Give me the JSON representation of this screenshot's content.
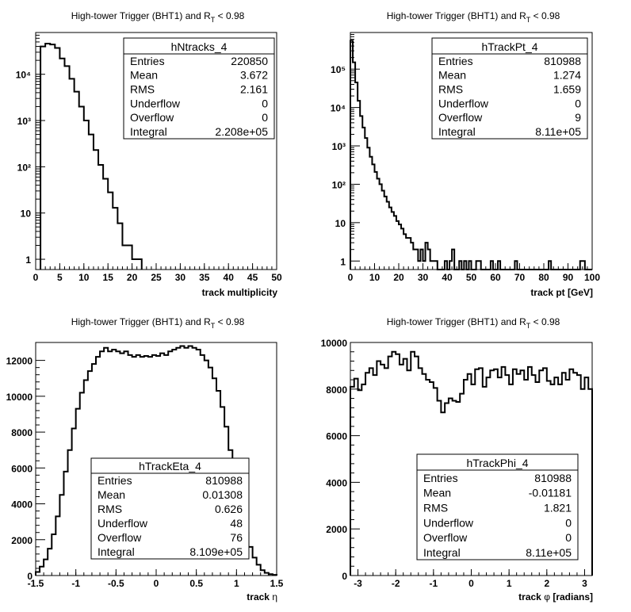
{
  "chart_data": [
    {
      "type": "histogram",
      "title": "High-tower Trigger (BHT1) and R",
      "title_sub": "T",
      "title_tail": "< 0.98",
      "xlabel": "track multiplicity",
      "xlabel_symbol": "",
      "xlabel_tail": "",
      "xlim": [
        0,
        50
      ],
      "ylim": [
        0.6,
        80000
      ],
      "yscale": "log",
      "xticks": [
        0,
        5,
        10,
        15,
        20,
        25,
        30,
        35,
        40,
        45,
        50
      ],
      "yticks": [
        "1",
        "10",
        "10²",
        "10³",
        "10⁴"
      ],
      "bin_width": 1,
      "bin_low_edges": [
        1,
        2,
        3,
        4,
        5,
        6,
        7,
        8,
        9,
        10,
        11,
        12,
        13,
        14,
        15,
        16,
        17,
        18,
        19,
        20,
        21
      ],
      "values": [
        40000,
        46000,
        44000,
        37000,
        22000,
        15000,
        8000,
        4200,
        2000,
        1000,
        500,
        230,
        110,
        55,
        28,
        13,
        6,
        2,
        2,
        1,
        1
      ],
      "stats": {
        "name": "hNtracks_4",
        "rows": [
          {
            "label": "Entries",
            "value": "220850"
          },
          {
            "label": "Mean",
            "value": "3.672"
          },
          {
            "label": "RMS",
            "value": "2.161"
          },
          {
            "label": "Underflow",
            "value": "0"
          },
          {
            "label": "Overflow",
            "value": "0"
          },
          {
            "label": "Integral",
            "value": "2.208e+05"
          }
        ]
      }
    },
    {
      "type": "histogram",
      "title": "High-tower Trigger (BHT1) and R",
      "title_sub": "T",
      "title_tail": "< 0.98",
      "xlabel": "track pt [GeV]",
      "xlabel_symbol": "",
      "xlabel_tail": "",
      "xlim": [
        0,
        100
      ],
      "ylim": [
        0.6,
        900000
      ],
      "yscale": "log",
      "xticks": [
        0,
        10,
        20,
        30,
        40,
        50,
        60,
        70,
        80,
        90,
        100
      ],
      "yticks": [
        "1",
        "10",
        "10²",
        "10³",
        "10⁴",
        "10⁵"
      ],
      "bin_width": 1,
      "bin_low_edges": [
        0,
        1,
        2,
        3,
        4,
        5,
        6,
        7,
        8,
        9,
        10,
        11,
        12,
        13,
        14,
        15,
        16,
        17,
        18,
        19,
        20,
        21,
        22,
        23,
        24,
        25,
        26,
        27,
        28,
        29,
        30,
        31,
        32,
        33,
        34,
        35,
        36,
        37,
        38,
        39,
        40,
        41,
        42,
        43,
        44,
        45,
        46,
        47,
        48,
        49,
        50,
        51,
        52,
        53,
        54,
        55,
        56,
        57,
        58,
        59,
        60,
        61,
        62,
        63,
        64,
        65,
        66,
        67,
        68,
        69,
        70,
        71,
        72,
        73,
        74,
        75,
        76,
        77,
        78,
        79,
        80,
        81,
        82,
        83,
        84,
        85,
        86,
        87,
        88,
        89,
        90,
        91,
        92,
        93,
        94,
        95,
        96,
        97,
        98,
        99
      ],
      "values": [
        550000,
        150000,
        45000,
        15000,
        6000,
        3000,
        1600,
        900,
        520,
        330,
        210,
        140,
        100,
        68,
        48,
        35,
        25,
        19,
        15,
        11,
        9,
        7,
        5,
        4,
        4,
        3,
        2,
        2,
        1,
        2,
        1,
        3,
        2,
        1,
        1,
        1,
        0,
        0,
        0,
        1,
        0,
        1,
        2,
        0,
        0,
        1,
        0,
        1,
        0,
        1,
        0,
        0,
        1,
        1,
        0,
        0,
        0,
        0,
        1,
        0,
        0,
        1,
        0,
        0,
        0,
        0,
        0,
        0,
        1,
        0,
        0,
        0,
        0,
        0,
        0,
        0,
        0,
        0,
        0,
        0,
        0,
        0,
        1,
        0,
        0,
        0,
        0,
        0,
        0,
        0,
        0,
        0,
        0,
        0,
        0,
        1,
        1,
        0,
        0,
        0
      ],
      "stats": {
        "name": "hTrackPt_4",
        "rows": [
          {
            "label": "Entries",
            "value": "810988"
          },
          {
            "label": "Mean",
            "value": "1.274"
          },
          {
            "label": "RMS",
            "value": "1.659"
          },
          {
            "label": "Underflow",
            "value": "0"
          },
          {
            "label": "Overflow",
            "value": "9"
          },
          {
            "label": "Integral",
            "value": "8.11e+05"
          }
        ]
      }
    },
    {
      "type": "histogram",
      "title": "High-tower Trigger (BHT1) and R",
      "title_sub": "T",
      "title_tail": "< 0.98",
      "xlabel": "track",
      "xlabel_symbol": "η",
      "xlabel_tail": "",
      "xlim": [
        -1.5,
        1.5
      ],
      "ylim": [
        0,
        13000
      ],
      "yscale": "linear",
      "xticks": [
        -1.5,
        -1,
        -0.5,
        0,
        0.5,
        1,
        1.5
      ],
      "yticks": [
        0,
        2000,
        4000,
        6000,
        8000,
        10000,
        12000
      ],
      "bin_width": 0.05,
      "bin_low_edges": [
        -1.5,
        -1.45,
        -1.4,
        -1.35,
        -1.3,
        -1.25,
        -1.2,
        -1.15,
        -1.1,
        -1.05,
        -1.0,
        -0.95,
        -0.9,
        -0.85,
        -0.8,
        -0.75,
        -0.7,
        -0.65,
        -0.6,
        -0.55,
        -0.5,
        -0.45,
        -0.4,
        -0.35,
        -0.3,
        -0.25,
        -0.2,
        -0.15,
        -0.1,
        -0.05,
        0.0,
        0.05,
        0.1,
        0.15,
        0.2,
        0.25,
        0.3,
        0.35,
        0.4,
        0.45,
        0.5,
        0.55,
        0.6,
        0.65,
        0.7,
        0.75,
        0.8,
        0.85,
        0.9,
        0.95,
        1.0,
        1.05,
        1.1,
        1.15,
        1.2,
        1.25,
        1.3,
        1.35,
        1.4,
        1.45
      ],
      "values": [
        200,
        500,
        900,
        1500,
        2300,
        3300,
        4500,
        5800,
        7000,
        8200,
        9300,
        10200,
        10900,
        11400,
        11800,
        12200,
        12500,
        12700,
        12500,
        12600,
        12500,
        12400,
        12500,
        12300,
        12200,
        12300,
        12200,
        12250,
        12200,
        12300,
        12250,
        12400,
        12300,
        12500,
        12600,
        12700,
        12800,
        12700,
        12800,
        12700,
        12600,
        12300,
        12000,
        11600,
        11000,
        10300,
        9400,
        8300,
        7000,
        5800,
        4500,
        3400,
        2400,
        1600,
        1000,
        600,
        300,
        150,
        80,
        40
      ],
      "stats": {
        "name": "hTrackEta_4",
        "rows": [
          {
            "label": "Entries",
            "value": "810988"
          },
          {
            "label": "Mean",
            "value": "0.01308"
          },
          {
            "label": "RMS",
            "value": "0.626"
          },
          {
            "label": "Underflow",
            "value": "48"
          },
          {
            "label": "Overflow",
            "value": "76"
          },
          {
            "label": "Integral",
            "value": "8.109e+05"
          }
        ]
      }
    },
    {
      "type": "histogram",
      "title": "High-tower Trigger (BHT1) and R",
      "title_sub": "T",
      "title_tail": "< 0.98",
      "xlabel": "track",
      "xlabel_symbol": "φ",
      "xlabel_tail": "[radians]",
      "xlim": [
        -3.2,
        3.2
      ],
      "ylim": [
        0,
        10000
      ],
      "yscale": "linear",
      "xticks": [
        -3,
        -2,
        -1,
        0,
        1,
        2,
        3
      ],
      "yticks": [
        0,
        2000,
        4000,
        6000,
        8000,
        10000
      ],
      "bin_width": 0.1,
      "bin_low_edges": [
        -3.2,
        -3.1,
        -3.0,
        -2.9,
        -2.8,
        -2.7,
        -2.6,
        -2.5,
        -2.4,
        -2.3,
        -2.2,
        -2.1,
        -2.0,
        -1.9,
        -1.8,
        -1.7,
        -1.6,
        -1.5,
        -1.4,
        -1.3,
        -1.2,
        -1.1,
        -1.0,
        -0.9,
        -0.8,
        -0.7,
        -0.6,
        -0.5,
        -0.4,
        -0.3,
        -0.2,
        -0.1,
        0.0,
        0.1,
        0.2,
        0.3,
        0.4,
        0.5,
        0.6,
        0.7,
        0.8,
        0.9,
        1.0,
        1.1,
        1.2,
        1.3,
        1.4,
        1.5,
        1.6,
        1.7,
        1.8,
        1.9,
        2.0,
        2.1,
        2.2,
        2.3,
        2.4,
        2.5,
        2.6,
        2.7,
        2.8,
        2.9,
        3.0,
        3.1
      ],
      "values": [
        8100,
        8450,
        7950,
        8200,
        8700,
        8900,
        8600,
        9200,
        9050,
        8900,
        9400,
        9600,
        9500,
        9050,
        9300,
        8800,
        9600,
        9400,
        8900,
        8650,
        8400,
        8300,
        8050,
        7500,
        7000,
        7400,
        7600,
        7500,
        7450,
        7800,
        8400,
        8650,
        8200,
        8850,
        8900,
        8100,
        8500,
        8800,
        8850,
        8500,
        8950,
        8600,
        8200,
        8850,
        8650,
        8800,
        8400,
        8950,
        8600,
        8300,
        8800,
        8900,
        8350,
        8200,
        8500,
        8200,
        8700,
        8400,
        8850,
        8700,
        8600,
        8000,
        8500,
        8000
      ],
      "stats": {
        "name": "hTrackPhi_4",
        "rows": [
          {
            "label": "Entries",
            "value": "810988"
          },
          {
            "label": "Mean",
            "value": "-0.01181"
          },
          {
            "label": "RMS",
            "value": "1.821"
          },
          {
            "label": "Underflow",
            "value": "0"
          },
          {
            "label": "Overflow",
            "value": "0"
          },
          {
            "label": "Integral",
            "value": "8.11e+05"
          }
        ]
      }
    }
  ]
}
